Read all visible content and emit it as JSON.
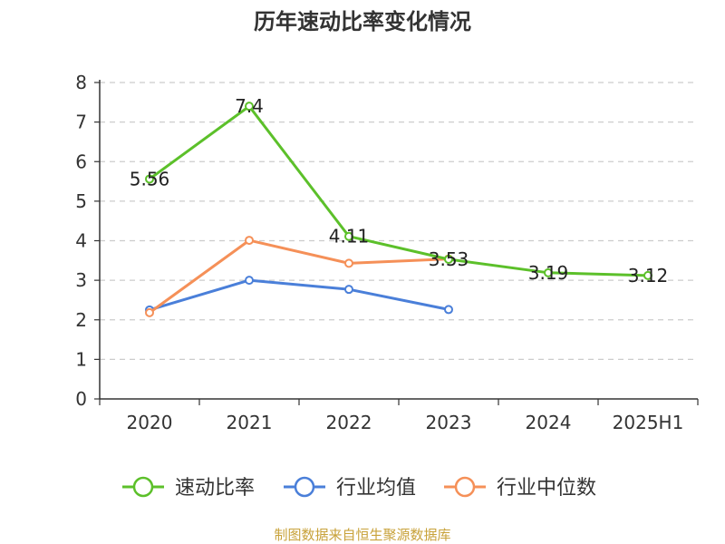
{
  "chart_data": {
    "type": "line",
    "title": "历年速动比率变化情况",
    "categories": [
      "2020",
      "2021",
      "2022",
      "2023",
      "2024",
      "2025H1"
    ],
    "ylim": [
      0,
      8
    ],
    "yticks": [
      0,
      1,
      2,
      3,
      4,
      5,
      6,
      7,
      8
    ],
    "grid": true,
    "legend_position": "bottom",
    "series": [
      {
        "name": "速动比率",
        "color": "#5cc02a",
        "values": [
          5.56,
          7.4,
          4.11,
          3.53,
          3.19,
          3.12
        ],
        "labels": [
          "5.56",
          "7.4",
          "4.11",
          "3.53",
          "3.19",
          "3.12"
        ]
      },
      {
        "name": "行业均值",
        "color": "#4a7fd9",
        "values": [
          2.25,
          3.0,
          2.77,
          2.26,
          null,
          null
        ]
      },
      {
        "name": "行业中位数",
        "color": "#f59058",
        "values": [
          2.18,
          4.01,
          3.43,
          3.54,
          null,
          null
        ]
      }
    ]
  },
  "footer": {
    "source": "制图数据来自恒生聚源数据库"
  }
}
